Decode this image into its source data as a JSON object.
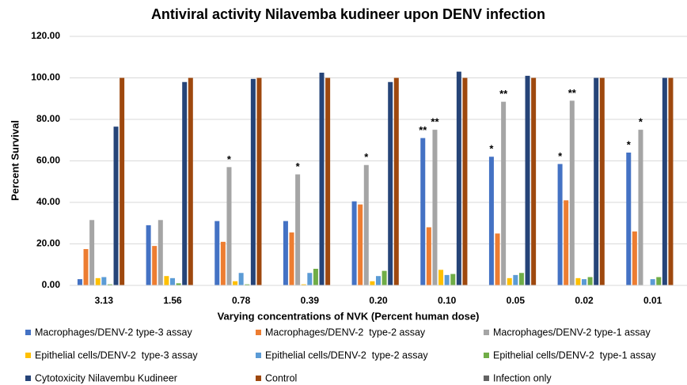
{
  "chart_data": {
    "type": "bar",
    "title": "Antiviral activity Nilavemba kudineer upon DENV infection",
    "x_label": "Varying concentrations of NVK (Percent human dose)",
    "y_label": "Percent Survival",
    "categories": [
      "3.13",
      "1.56",
      "0.78",
      "0.39",
      "0.20",
      "0.10",
      "0.05",
      "0.02",
      "0.01"
    ],
    "series": [
      {
        "name": "Macrophages/DENV-2 type-3 assay",
        "color": "#4472c4",
        "values": [
          3,
          29,
          31,
          31,
          40.5,
          71,
          62,
          58.5,
          64
        ]
      },
      {
        "name": "Macrophages/DENV-2  type-2 assay",
        "color": "#ed7d31",
        "values": [
          17.5,
          19,
          21,
          25.5,
          39,
          28,
          25,
          41,
          26
        ]
      },
      {
        "name": "Macrophages/DENV-2 type-1 assay",
        "color": "#a5a5a5",
        "values": [
          31.5,
          31.5,
          57,
          53.5,
          58,
          75,
          88.5,
          89,
          75
        ]
      },
      {
        "name": "Epithelial cells/DENV-2  type-3 assay",
        "color": "#ffc000",
        "values": [
          3.5,
          4.5,
          2,
          0.5,
          2,
          7.5,
          3.5,
          3.5,
          0
        ]
      },
      {
        "name": "Epithelial cells/DENV-2  type-2 assay",
        "color": "#5b9bd5",
        "values": [
          4,
          3.5,
          6,
          6,
          4.5,
          5,
          5,
          3,
          3
        ]
      },
      {
        "name": "Epithelial cells/DENV-2  type-1 assay",
        "color": "#70ad47",
        "values": [
          0.5,
          1,
          0.5,
          8,
          7,
          5.5,
          6,
          4,
          4
        ]
      },
      {
        "name": "Cytotoxicity Nilavembu Kudineer",
        "color": "#264478",
        "values": [
          76.5,
          98,
          99.5,
          102.5,
          98,
          103,
          101,
          100,
          100
        ]
      },
      {
        "name": "Control",
        "color": "#9e480e",
        "values": [
          100,
          100,
          100,
          100,
          100,
          100,
          100,
          100,
          100
        ]
      },
      {
        "name": "Infection only",
        "color": "#636363",
        "values": [
          0,
          0,
          0,
          0,
          0,
          0,
          0,
          0,
          0
        ]
      }
    ],
    "ylim": [
      0,
      120
    ],
    "yticks": [
      {
        "value": 0,
        "label": "0.00"
      },
      {
        "value": 20,
        "label": "20.00"
      },
      {
        "value": 40,
        "label": "40.00"
      },
      {
        "value": 60,
        "label": "60.00"
      },
      {
        "value": 80,
        "label": "80.00"
      },
      {
        "value": 100,
        "label": "100.00"
      },
      {
        "value": 120,
        "label": "120.00"
      }
    ],
    "grid": true,
    "legend": "bottom",
    "annotations": [
      {
        "label": "*",
        "category": "0.78",
        "series": "Macrophages/DENV-2 type-1 assay"
      },
      {
        "label": "*",
        "category": "0.39",
        "series": "Macrophages/DENV-2 type-1 assay"
      },
      {
        "label": "*",
        "category": "0.20",
        "series": "Macrophages/DENV-2 type-1 assay"
      },
      {
        "label": "**",
        "category": "0.10",
        "series": "Macrophages/DENV-2 type-3 assay"
      },
      {
        "label": "**",
        "category": "0.10",
        "series": "Macrophages/DENV-2 type-1 assay"
      },
      {
        "label": "*",
        "category": "0.05",
        "series": "Macrophages/DENV-2 type-3 assay"
      },
      {
        "label": "**",
        "category": "0.05",
        "series": "Macrophages/DENV-2 type-1 assay"
      },
      {
        "label": "*",
        "category": "0.02",
        "series": "Macrophages/DENV-2 type-3 assay"
      },
      {
        "label": "**",
        "category": "0.02",
        "series": "Macrophages/DENV-2 type-1 assay"
      },
      {
        "label": "*",
        "category": "0.01",
        "series": "Macrophages/DENV-2 type-3 assay"
      },
      {
        "label": "*",
        "category": "0.01",
        "series": "Macrophages/DENV-2 type-1 assay"
      }
    ]
  }
}
